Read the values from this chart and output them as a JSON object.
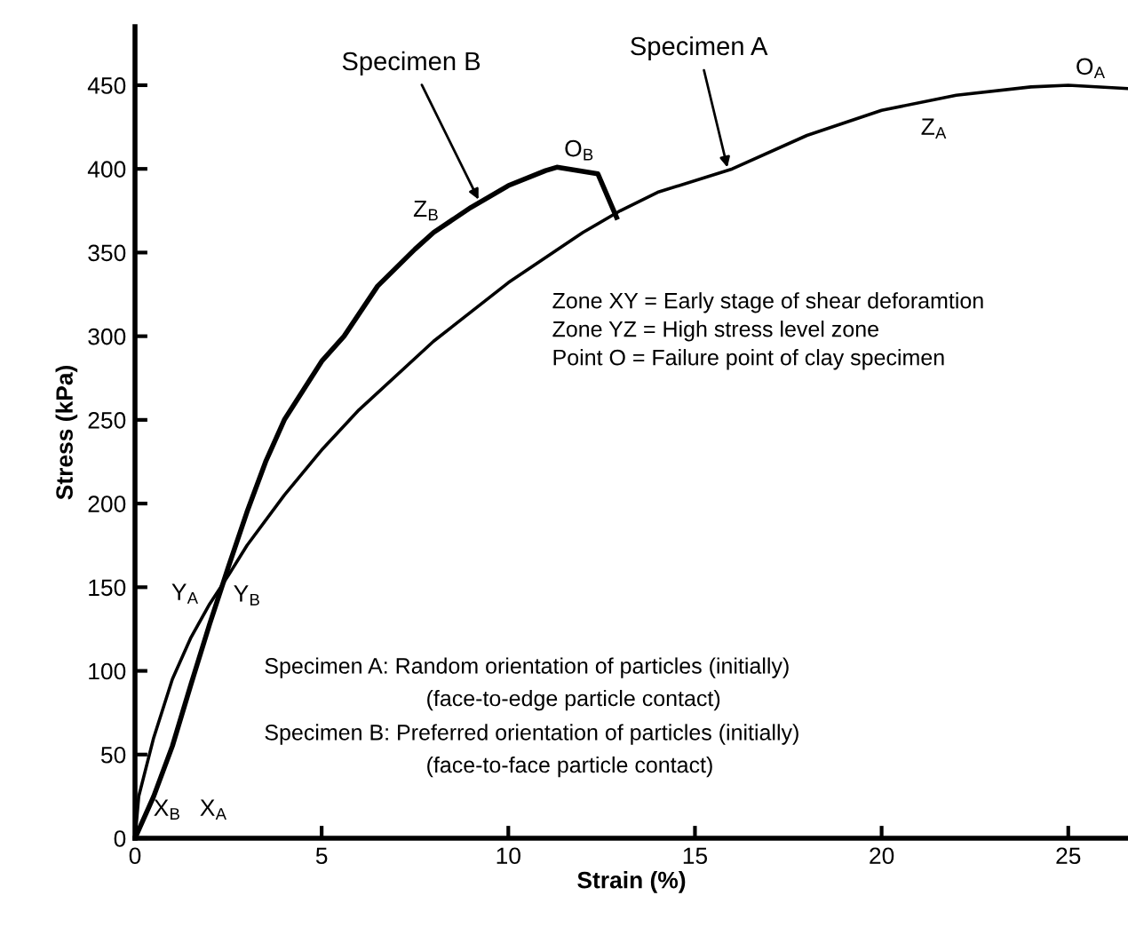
{
  "chart_data": {
    "type": "line",
    "xlabel": "Strain (%)",
    "ylabel": "Stress (kPa)",
    "xlim": [
      0,
      26.6
    ],
    "ylim": [
      0,
      485
    ],
    "xticks": [
      0,
      5,
      10,
      15,
      20,
      25
    ],
    "yticks": [
      0,
      50,
      100,
      150,
      200,
      250,
      300,
      350,
      400,
      450
    ],
    "grid": false,
    "legend": false,
    "marker": "none",
    "line_style": "solid",
    "series": [
      {
        "color": "#000000",
        "x": [
          0,
          0.1,
          0.5,
          1,
          1.5,
          2,
          2.5,
          3,
          4,
          5,
          6,
          8,
          10,
          12,
          13,
          14,
          16,
          18,
          20,
          22,
          24,
          25,
          26.6
        ],
        "values": [
          0,
          25,
          60,
          95,
          120,
          140,
          157,
          175,
          205,
          232,
          256,
          297,
          332,
          362,
          375,
          386,
          400,
          420,
          435,
          444,
          449,
          450,
          448
        ]
      },
      {
        "color": "#000000",
        "x": [
          0,
          0.5,
          1,
          1.5,
          2,
          2.5,
          3,
          3.5,
          4,
          5,
          5.6,
          6.5,
          7.5,
          8,
          9,
          10,
          11,
          11.3,
          12.4,
          12.9
        ],
        "values": [
          0,
          25,
          55,
          92,
          128,
          162,
          195,
          225,
          250,
          285,
          300,
          330,
          352,
          362,
          377,
          390,
          399,
          401,
          397,
          371
        ]
      }
    ],
    "annotations": [
      {
        "text": "Specimen B",
        "x": 9.26,
        "y": 379
      },
      {
        "text": "Specimen A",
        "x": 15.9,
        "y": 398
      },
      "O$_{A}$",
      "Z$_{A}$",
      "O$_{B}$",
      "Z$_{B}$",
      "Y$_{A}$",
      "Y$_{B}$",
      "X$_{B}$",
      "X$_{A}$",
      "Zone XY = Early stage of shear deforamtion",
      "Zone YZ = High stress level zone",
      "Point O = Failure point of clay specimen",
      "Specimen A: Random orientation of particles (initially)",
      "(face-to-edge particle contact)",
      "Specimen B: Preferred orientation of particles (initially)",
      "(face-to-face particle contact)"
    ]
  }
}
